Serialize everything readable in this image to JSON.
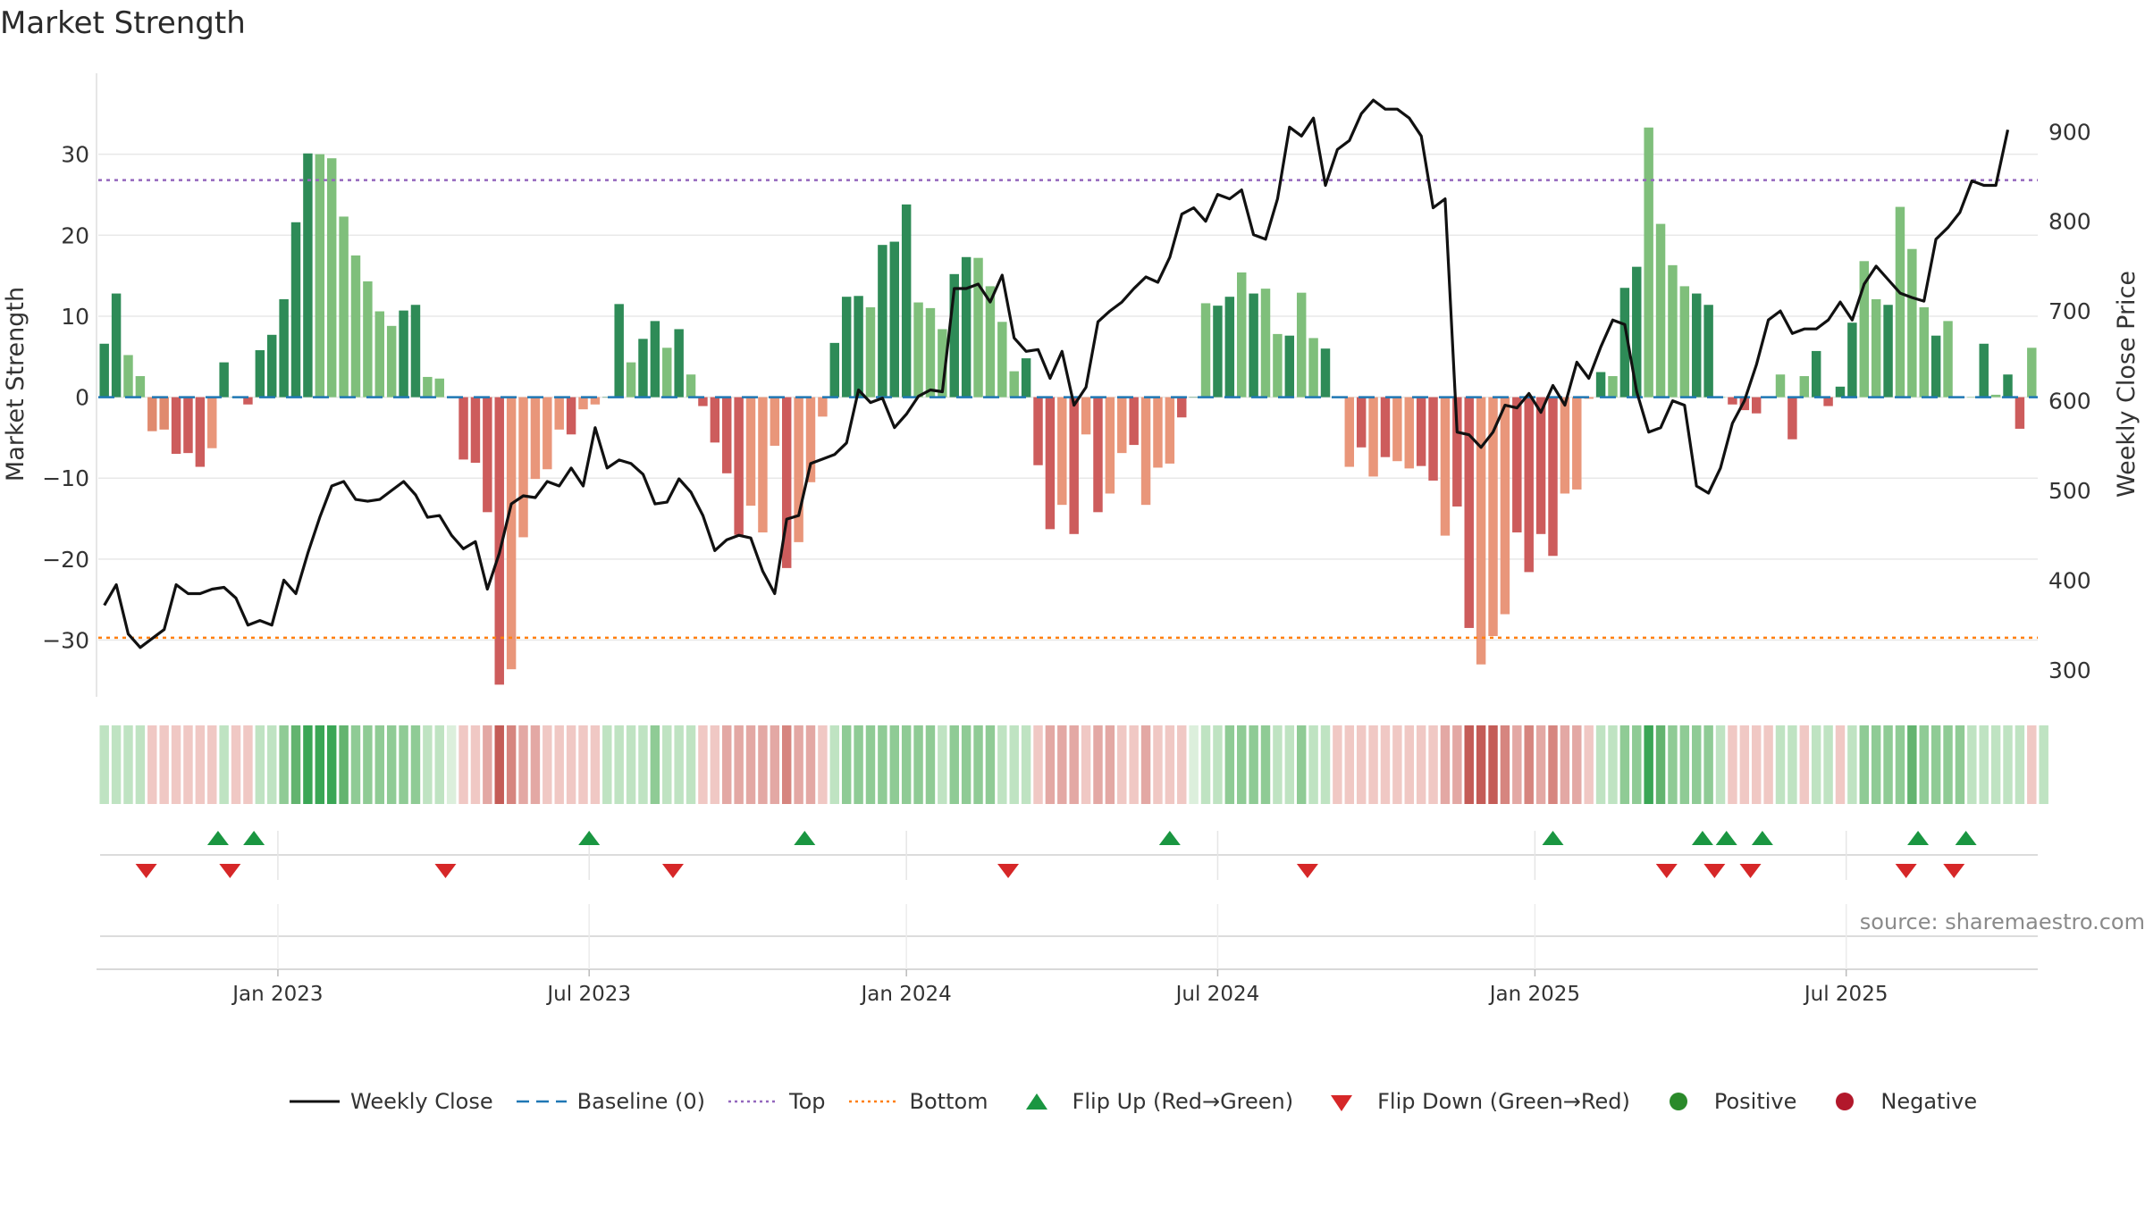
{
  "title": "Market Strength",
  "source": "source: sharemaestro.com",
  "chart_data": {
    "type": "bar",
    "title": "Market Strength",
    "ylabel_left": "Market Strength",
    "ylabel_right": "Weekly Close Price",
    "ylim_left": [
      -37,
      40
    ],
    "ylim_right": [
      270,
      965
    ],
    "left_ticks": [
      30,
      20,
      10,
      0,
      -10,
      -20,
      -30
    ],
    "left_tick_labels": [
      "30",
      "20",
      "10",
      "0",
      "−10",
      "−20",
      "−30"
    ],
    "right_ticks": [
      900,
      800,
      700,
      600,
      500,
      400,
      300
    ],
    "right_tick_labels": [
      "900",
      "800",
      "700",
      "600",
      "500",
      "400",
      "300"
    ],
    "top_line": 26.8,
    "bottom_line": -29.7,
    "baseline": 0,
    "x_tick_labels": [
      {
        "label": "Jan 2023",
        "week": 15
      },
      {
        "label": "Jul 2023",
        "week": 41
      },
      {
        "label": "Jan 2024",
        "week": 67.5
      },
      {
        "label": "Jul 2024",
        "week": 93.5
      },
      {
        "label": "Jan 2025",
        "week": 120
      },
      {
        "label": "Jul 2025",
        "week": 146
      }
    ],
    "strength": [
      6.6,
      12.8,
      5.2,
      2.6,
      -4.2,
      -4,
      -7,
      -6.9,
      -8.6,
      -6.3,
      4.3,
      0,
      -0.9,
      5.8,
      7.7,
      12.1,
      21.6,
      30.1,
      30,
      29.5,
      22.3,
      17.5,
      14.3,
      10.6,
      8.8,
      10.7,
      11.4,
      2.5,
      2.3,
      0,
      -7.7,
      -8.1,
      -14.2,
      -35.5,
      -33.6,
      -17.3,
      -10.1,
      -8.9,
      -4,
      -4.6,
      -1.5,
      -0.9,
      0,
      11.5,
      4.3,
      7.2,
      9.4,
      6.1,
      8.4,
      2.8,
      -1.1,
      -5.6,
      -9.4,
      -17,
      -13.4,
      -16.7,
      -6,
      -21.1,
      -17.9,
      -10.5,
      -2.4,
      6.7,
      12.4,
      12.5,
      11.1,
      18.8,
      19.2,
      23.8,
      11.7,
      11,
      8.4,
      15.2,
      17.3,
      17.2,
      13.7,
      9.3,
      3.2,
      4.8,
      -8.4,
      -16.3,
      -13.3,
      -16.9,
      -4.6,
      -14.2,
      -11.9,
      -6.9,
      -5.9,
      -13.3,
      -8.7,
      -8.2,
      -2.5,
      0,
      11.6,
      11.3,
      12.4,
      15.4,
      12.8,
      13.4,
      7.8,
      7.6,
      12.9,
      7.3,
      6,
      -0.1,
      -8.6,
      -6.2,
      -9.8,
      -7.4,
      -7.9,
      -8.8,
      -8.5,
      -10.3,
      -17.1,
      -13.5,
      -28.5,
      -33,
      -29.5,
      -26.8,
      -16.7,
      -21.6,
      -16.9,
      -19.6,
      -11.9,
      -11.4,
      -0.2,
      3.1,
      2.6,
      13.5,
      16.1,
      33.3,
      21.4,
      16.3,
      13.7,
      12.8,
      11.4,
      0,
      -0.9,
      -1.6,
      -2,
      0.1,
      2.8,
      -5.2,
      2.6,
      5.7,
      -1.1,
      1.3,
      9.2,
      16.8,
      12.1,
      11.4,
      23.5,
      18.3,
      11.1,
      7.6,
      9.4,
      0,
      0,
      6.6,
      0.3,
      2.8,
      -3.9,
      6.1
    ],
    "strength_style": [
      1,
      1,
      2,
      2,
      3,
      3,
      1,
      1,
      1,
      2,
      1,
      0,
      1,
      1,
      1,
      1,
      1,
      1,
      2,
      2,
      2,
      2,
      2,
      2,
      2,
      1,
      1,
      2,
      2,
      0,
      1,
      1,
      1,
      1,
      2,
      2,
      2,
      2,
      2,
      1,
      2,
      2,
      0,
      1,
      2,
      1,
      1,
      2,
      1,
      2,
      1,
      1,
      1,
      1,
      2,
      2,
      2,
      1,
      2,
      2,
      2,
      1,
      1,
      1,
      2,
      1,
      1,
      1,
      2,
      2,
      2,
      1,
      1,
      2,
      2,
      2,
      2,
      1,
      1,
      1,
      2,
      1,
      2,
      1,
      2,
      2,
      1,
      2,
      2,
      2,
      0,
      1,
      2,
      1,
      1,
      2,
      1,
      2,
      2,
      1,
      2,
      2,
      0,
      1,
      2,
      1,
      2,
      1,
      2,
      2,
      1,
      1,
      2,
      1,
      1,
      2,
      2,
      2,
      1,
      1,
      1,
      1,
      2,
      2,
      2,
      1,
      2,
      1,
      1,
      2,
      2,
      2,
      2,
      0,
      1,
      2,
      1,
      0,
      1,
      1,
      2,
      1,
      2,
      1,
      1,
      1,
      1,
      2,
      2,
      1,
      2,
      2,
      2,
      1,
      2,
      1,
      2,
      1,
      2,
      1,
      1,
      2,
      1,
      1
    ],
    "price": [
      372,
      395,
      340,
      325,
      335,
      345,
      395,
      385,
      385,
      390,
      392,
      380,
      350,
      355,
      350,
      400,
      385,
      430,
      470,
      505,
      510,
      490,
      488,
      490,
      500,
      510,
      495,
      470,
      472,
      450,
      435,
      443,
      390,
      430,
      485,
      494,
      492,
      510,
      505,
      525,
      505,
      570,
      525,
      534,
      530,
      518,
      485,
      487,
      513,
      498,
      472,
      433,
      445,
      450,
      447,
      410,
      385,
      468,
      472,
      530,
      535,
      540,
      553,
      612,
      598,
      603,
      570,
      585,
      605,
      612,
      610,
      725,
      725,
      730,
      710,
      740,
      670,
      655,
      657,
      625,
      655,
      595,
      615,
      688,
      700,
      710,
      725,
      738,
      732,
      760,
      808,
      815,
      800,
      830,
      825,
      835,
      785,
      780,
      825,
      905,
      895,
      915,
      840,
      880,
      890,
      920,
      935,
      925,
      925,
      915,
      895,
      815,
      825,
      565,
      562,
      548,
      565,
      595,
      592,
      608,
      587,
      617,
      595,
      643,
      625,
      660,
      690,
      685,
      610,
      565,
      570,
      600,
      595,
      505,
      497,
      525,
      575,
      600,
      640,
      690,
      700,
      675,
      680,
      680,
      690,
      710,
      690,
      730,
      750,
      735,
      720,
      715,
      711,
      780,
      793,
      810,
      845,
      840,
      840,
      902
    ],
    "heat": [
      1,
      1,
      1,
      1,
      -1,
      -1,
      -1,
      -1,
      -1,
      -1,
      1,
      -1,
      -1,
      1,
      1,
      2,
      3,
      4,
      4,
      4,
      3,
      2,
      2,
      2,
      2,
      2,
      2,
      1,
      1,
      0,
      -1,
      -1,
      -2,
      -4,
      -3,
      -2,
      -2,
      -1,
      -1,
      -1,
      -1,
      -1,
      1,
      1,
      1,
      1,
      2,
      1,
      1,
      1,
      -1,
      -1,
      -2,
      -2,
      -2,
      -2,
      -2,
      -3,
      -2,
      -2,
      -1,
      1,
      2,
      2,
      2,
      2,
      2,
      2,
      2,
      2,
      1,
      2,
      2,
      2,
      2,
      1,
      1,
      1,
      -1,
      -2,
      -2,
      -2,
      -1,
      -2,
      -2,
      -1,
      -1,
      -2,
      -1,
      -1,
      -1,
      0,
      1,
      1,
      2,
      2,
      2,
      2,
      1,
      1,
      2,
      1,
      1,
      -1,
      -1,
      -1,
      -1,
      -1,
      -1,
      -1,
      -1,
      -1,
      -2,
      -2,
      -4,
      -4,
      -4,
      -3,
      -2,
      -3,
      -2,
      -3,
      -2,
      -2,
      -1,
      1,
      1,
      2,
      2,
      4,
      3,
      2,
      2,
      2,
      2,
      1,
      -1,
      -1,
      -1,
      -1,
      1,
      1,
      -1,
      1,
      1,
      -1,
      1,
      2,
      2,
      2,
      2,
      3,
      2,
      2,
      2,
      2,
      1,
      1,
      1,
      1,
      1,
      -1,
      1
    ],
    "flip_up_weeks": [
      10,
      13,
      41,
      59,
      89.5,
      121.5,
      134,
      136,
      139,
      152,
      156
    ],
    "flip_down_weeks": [
      4,
      11,
      29,
      48,
      76,
      101,
      131,
      135,
      138,
      151,
      155
    ],
    "legend": [
      {
        "key": "close",
        "label": "Weekly Close"
      },
      {
        "key": "baseline",
        "label": "Baseline (0)"
      },
      {
        "key": "top",
        "label": "Top"
      },
      {
        "key": "bottom",
        "label": "Bottom"
      },
      {
        "key": "flip_up",
        "label": "Flip Up (Red→Green)"
      },
      {
        "key": "flip_down",
        "label": "Flip Down (Green→Red)"
      },
      {
        "key": "positive",
        "label": "Positive"
      },
      {
        "key": "negative",
        "label": "Negative"
      }
    ],
    "colors": {
      "pos_dark": "#2e8b57",
      "pos_light": "#7fbf7b",
      "neg_dark": "#cd5c5c",
      "neg_light": "#e9967a",
      "price_line": "#111111",
      "baseline": "#1f77b4",
      "top": "#9467bd",
      "bottom": "#ff7f0e",
      "flip_up": "#1a9641",
      "flip_down": "#d62728",
      "positive": "#2a8a2a",
      "negative": "#b2182b",
      "grid": "#e8e8e8"
    }
  }
}
